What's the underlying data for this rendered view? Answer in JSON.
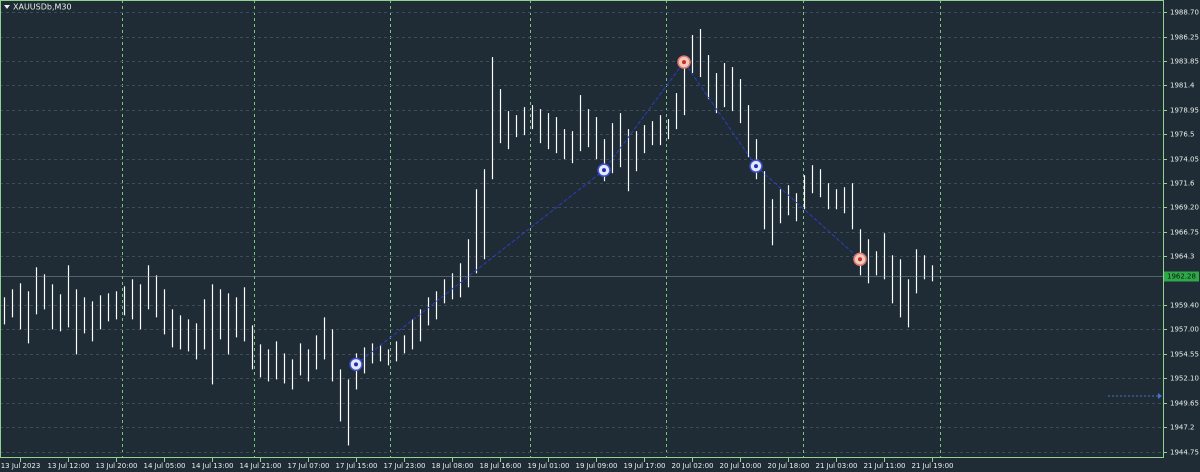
{
  "chart_data": {
    "type": "range-bar",
    "title": "XAUUSDb,M30",
    "color": "#ffffff",
    "high": [
      1960.2,
      1961.0,
      1961.6,
      1960.8,
      1963.2,
      1962.5,
      1961.5,
      1960.5,
      1963.4,
      1961.0,
      1960.2,
      1959.8,
      1960.4,
      1960.6,
      1960.8,
      1961.3,
      1962.0,
      1961.5,
      1963.4,
      1962.4,
      1961.0,
      1959.0,
      1958.4,
      1958.0,
      1957.6,
      1960.0,
      1961.5,
      1961.0,
      1960.6,
      1960.2,
      1961.2,
      1957.4,
      1955.5,
      1955.0,
      1955.8,
      1954.6,
      1954.0,
      1955.6,
      1955.0,
      1956.4,
      1958.2,
      1957.0,
      1953.0,
      1952.0,
      1954.6,
      1955.2,
      1955.6,
      1955.4,
      1955.0,
      1955.8,
      1956.4,
      1958.0,
      1959.0,
      1960.2,
      1960.8,
      1962.0,
      1962.6,
      1963.6,
      1966.0,
      1971.0,
      1973.0,
      1984.2,
      1981.0,
      1978.8,
      1978.4,
      1979.2,
      1979.4,
      1979.0,
      1978.6,
      1978.2,
      1977.0,
      1976.8,
      1980.4,
      1979.0,
      1978.2,
      1976.0,
      1977.6,
      1978.6,
      1977.0,
      1976.8,
      1977.4,
      1977.8,
      1978.4,
      1978.0,
      1980.6,
      1984.0,
      1986.4,
      1987.0,
      1984.4,
      1982.6,
      1983.6,
      1983.2,
      1982.0,
      1979.4,
      1976.0,
      1972.8,
      1970.0,
      1971.0,
      1971.4,
      1970.6,
      1972.4,
      1973.4,
      1973.0,
      1971.6,
      1971.0,
      1971.2,
      1971.6,
      1967.0,
      1966.0,
      1964.8,
      1966.6,
      1964.4,
      1964.0,
      1962.0,
      1965.0,
      1964.4,
      1963.4
    ],
    "low": [
      1957.5,
      1958.2,
      1957.0,
      1955.6,
      1958.5,
      1959.0,
      1957.0,
      1956.8,
      1957.2,
      1954.5,
      1956.6,
      1955.8,
      1957.0,
      1957.8,
      1958.0,
      1958.4,
      1958.0,
      1957.0,
      1959.0,
      1958.2,
      1956.5,
      1955.2,
      1955.0,
      1954.8,
      1954.0,
      1955.0,
      1951.5,
      1956.0,
      1954.5,
      1956.2,
      1955.8,
      1953.0,
      1952.2,
      1951.8,
      1952.0,
      1951.6,
      1951.0,
      1952.4,
      1951.8,
      1953.0,
      1954.0,
      1951.8,
      1947.8,
      1945.4,
      1951.0,
      1952.6,
      1953.6,
      1953.8,
      1953.4,
      1953.8,
      1954.6,
      1955.0,
      1955.8,
      1957.4,
      1958.0,
      1959.6,
      1960.0,
      1960.2,
      1961.2,
      1962.6,
      1964.0,
      1972.0,
      1975.6,
      1975.0,
      1976.2,
      1976.4,
      1977.0,
      1975.6,
      1975.0,
      1974.6,
      1974.0,
      1973.6,
      1974.8,
      1975.2,
      1974.0,
      1971.8,
      1972.6,
      1973.2,
      1970.8,
      1972.8,
      1974.6,
      1975.4,
      1975.4,
      1976.0,
      1977.0,
      1978.4,
      1982.6,
      1982.2,
      1980.0,
      1978.6,
      1979.2,
      1978.8,
      1977.6,
      1974.2,
      1972.0,
      1967.0,
      1965.4,
      1967.6,
      1968.4,
      1967.8,
      1969.0,
      1970.6,
      1970.2,
      1969.0,
      1969.0,
      1968.6,
      1967.0,
      1962.4,
      1961.6,
      1962.4,
      1962.0,
      1959.6,
      1958.2,
      1957.2,
      1960.6,
      1962.0,
      1961.8
    ],
    "xlim": [
      -0.5,
      144.875
    ],
    "xticks": [
      {
        "value": 2,
        "label": "13 Jul 2023"
      },
      {
        "value": 8,
        "label": "13 Jul 12:00"
      },
      {
        "value": 14,
        "label": "13 Jul 20:00"
      },
      {
        "value": 20,
        "label": "14 Jul 05:00"
      },
      {
        "value": 26,
        "label": "14 Jul 13:00"
      },
      {
        "value": 32,
        "label": "14 Jul 21:00"
      },
      {
        "value": 38,
        "label": "17 Jul 07:00"
      },
      {
        "value": 44,
        "label": "17 Jul 15:00"
      },
      {
        "value": 50,
        "label": "17 Jul 23:00"
      },
      {
        "value": 56,
        "label": "18 Jul 08:00"
      },
      {
        "value": 62,
        "label": "18 Jul 16:00"
      },
      {
        "value": 68,
        "label": "19 Jul 01:00"
      },
      {
        "value": 74,
        "label": "19 Jul 09:00"
      },
      {
        "value": 80,
        "label": "19 Jul 17:00"
      },
      {
        "value": 86,
        "label": "20 Jul 02:00"
      },
      {
        "value": 92,
        "label": "20 Jul 10:00"
      },
      {
        "value": 98,
        "label": "20 Jul 18:00"
      },
      {
        "value": 104,
        "label": "21 Jul 03:00"
      },
      {
        "value": 110,
        "label": "21 Jul 11:00"
      },
      {
        "value": 116,
        "label": "21 Jul 19:00"
      }
    ],
    "ylim": [
      1944.15,
      1989.9
    ],
    "yticks": [
      {
        "value": 1988.7,
        "label": "1988.70"
      },
      1986.25,
      1983.85,
      1981.4,
      1978.95,
      1976.5,
      1974.05,
      1971.6,
      {
        "value": 1969.2,
        "label": "1969.20"
      },
      1966.75,
      1964.3,
      {
        "value": 1959.4,
        "label": "1959.40"
      },
      {
        "value": 1957.0,
        "label": "1957.00"
      },
      1954.55,
      {
        "value": 1952.1,
        "label": "1952.10"
      },
      1949.65,
      1947.2,
      1944.75
    ],
    "grid": true,
    "last_price": 1962.28,
    "zigzag": {
      "color": "#2a3fc0",
      "x": [
        44,
        75,
        85,
        94,
        107
      ],
      "values": [
        1953.5,
        1972.9,
        1983.7,
        1973.3,
        1964.0
      ]
    }
  }
}
